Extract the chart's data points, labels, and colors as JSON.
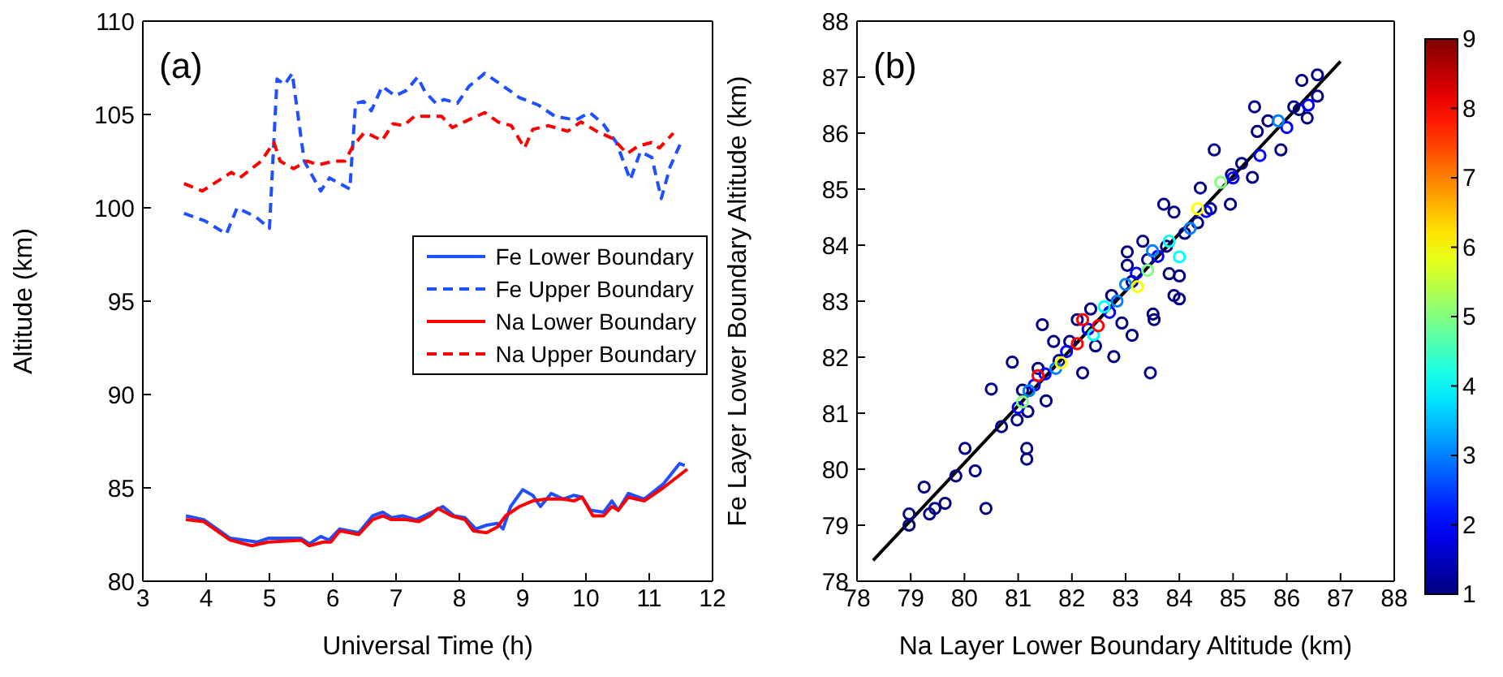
{
  "chart_data": [
    {
      "type": "line",
      "annotations": [
        "(a)"
      ],
      "xlabel": "Universal Time (h)",
      "ylabel": "Altitude (km)",
      "xlim": [
        3,
        12
      ],
      "xticks": [
        3,
        4,
        5,
        6,
        7,
        8,
        9,
        10,
        11,
        12
      ],
      "ylim": [
        80,
        110
      ],
      "yticks": [
        80,
        85,
        90,
        95,
        100,
        105,
        110
      ],
      "legend": "right",
      "marker": "none",
      "series": [
        {
          "name": "Fe Lower Boundary",
          "color": "#1f4fff",
          "line_style": "solid",
          "x": [
            3.68,
            3.96,
            4.38,
            4.81,
            4.98,
            5.5,
            5.63,
            5.81,
            5.94,
            6.11,
            6.41,
            6.63,
            6.79,
            6.93,
            7.1,
            7.32,
            7.57,
            7.74,
            7.92,
            8.09,
            8.26,
            8.43,
            8.6,
            8.69,
            8.81,
            9.0,
            9.16,
            9.28,
            9.45,
            9.64,
            9.81,
            9.94,
            10.07,
            10.28,
            10.41,
            10.51,
            10.67,
            10.92,
            11.22,
            11.48,
            11.56
          ],
          "values": [
            83.5,
            83.3,
            82.3,
            82.1,
            82.3,
            82.3,
            82.0,
            82.4,
            82.2,
            82.8,
            82.6,
            83.5,
            83.7,
            83.4,
            83.5,
            83.3,
            83.7,
            84.0,
            83.5,
            83.4,
            82.8,
            83.0,
            83.1,
            82.8,
            84.0,
            84.9,
            84.6,
            84.0,
            84.7,
            84.4,
            84.6,
            84.5,
            83.8,
            83.7,
            84.3,
            83.8,
            84.7,
            84.4,
            85.2,
            86.3,
            86.2
          ]
        },
        {
          "name": "Fe Upper Boundary",
          "color": "#1f4fff",
          "line_style": "dashed",
          "x": [
            3.65,
            3.98,
            4.32,
            4.49,
            4.79,
            5.0,
            5.12,
            5.24,
            5.36,
            5.55,
            5.81,
            5.95,
            6.27,
            6.36,
            6.49,
            6.61,
            6.78,
            6.99,
            7.17,
            7.34,
            7.46,
            7.63,
            7.76,
            7.97,
            8.15,
            8.4,
            8.66,
            8.95,
            9.25,
            9.51,
            9.84,
            10.06,
            10.27,
            10.48,
            10.7,
            10.86,
            11.04,
            11.19,
            11.33,
            11.5
          ],
          "values": [
            99.7,
            99.3,
            98.6,
            100.0,
            99.5,
            98.9,
            106.9,
            106.6,
            107.2,
            102.5,
            100.9,
            101.6,
            101.0,
            105.6,
            105.7,
            105.2,
            106.5,
            106.0,
            106.3,
            107.0,
            106.2,
            105.6,
            105.8,
            105.6,
            106.5,
            107.2,
            106.6,
            105.9,
            105.5,
            104.9,
            104.7,
            105.1,
            104.5,
            103.5,
            101.5,
            103.0,
            102.7,
            100.5,
            102.2,
            103.5
          ]
        },
        {
          "name": "Na Lower Boundary",
          "color": "#ff0000",
          "line_style": "solid",
          "x": [
            3.68,
            3.96,
            4.38,
            4.72,
            4.98,
            5.5,
            5.63,
            5.85,
            5.97,
            6.11,
            6.41,
            6.63,
            6.79,
            6.93,
            7.15,
            7.36,
            7.53,
            7.66,
            7.88,
            8.09,
            8.22,
            8.43,
            8.6,
            8.73,
            8.95,
            9.16,
            9.38,
            9.64,
            9.81,
            9.94,
            10.11,
            10.28,
            10.41,
            10.51,
            10.67,
            10.92,
            11.22,
            11.6
          ],
          "values": [
            83.3,
            83.2,
            82.2,
            81.9,
            82.1,
            82.2,
            81.9,
            82.1,
            82.1,
            82.7,
            82.5,
            83.3,
            83.5,
            83.3,
            83.3,
            83.2,
            83.5,
            83.9,
            83.5,
            83.3,
            82.7,
            82.6,
            82.9,
            83.5,
            84.0,
            84.3,
            84.4,
            84.4,
            84.3,
            84.5,
            83.5,
            83.5,
            84.0,
            83.8,
            84.5,
            84.3,
            85.0,
            86.0
          ]
        },
        {
          "name": "Na Upper Boundary",
          "color": "#ff0000",
          "line_style": "dashed",
          "x": [
            3.65,
            3.94,
            4.4,
            4.53,
            4.87,
            5.07,
            5.17,
            5.38,
            5.6,
            5.77,
            6.02,
            6.19,
            6.32,
            6.49,
            6.6,
            6.78,
            6.95,
            7.12,
            7.29,
            7.5,
            7.72,
            7.89,
            8.14,
            8.4,
            8.61,
            8.82,
            9.03,
            9.16,
            9.41,
            9.71,
            9.92,
            10.17,
            10.43,
            10.65,
            10.82,
            11.04,
            11.16,
            11.38
          ],
          "values": [
            101.3,
            100.9,
            101.9,
            101.6,
            102.5,
            103.5,
            102.5,
            102.1,
            102.5,
            102.3,
            102.5,
            102.5,
            103.3,
            104.0,
            103.9,
            103.6,
            104.5,
            104.4,
            104.9,
            104.9,
            104.9,
            104.3,
            104.7,
            105.1,
            104.6,
            104.4,
            103.2,
            104.2,
            104.4,
            104.1,
            104.6,
            104.1,
            103.7,
            102.9,
            103.3,
            103.5,
            103.2,
            104.0
          ]
        }
      ]
    },
    {
      "type": "scatter",
      "annotations": [
        "(b)"
      ],
      "xlabel": "Na Layer Lower Boundary Altitude (km)",
      "ylabel": "Fe Layer Lower Boundary Altitude (km)",
      "xlim": [
        78,
        88
      ],
      "xticks": [
        78,
        79,
        80,
        81,
        82,
        83,
        84,
        85,
        86,
        87,
        88
      ],
      "ylim": [
        78,
        88
      ],
      "yticks": [
        78,
        79,
        80,
        81,
        82,
        83,
        84,
        85,
        86,
        87,
        88
      ],
      "clim": [
        1,
        9
      ],
      "cticks": [
        1,
        2,
        3,
        4,
        5,
        6,
        7,
        8,
        9
      ],
      "series": [
        {
          "marker": "circle",
          "x": [
            78.97,
            78.97,
            79.25,
            79.35,
            79.45,
            79.64,
            79.84,
            80.01,
            80.2,
            80.4,
            80.69,
            80.5,
            80.89,
            81.16,
            81.16,
            81.45,
            80.98,
            81.18,
            81.52,
            81.08,
            81.37,
            81.76,
            82.2,
            82.78,
            83.46,
            83.53,
            84.0,
            83.12,
            82.93,
            81.96,
            82.1,
            82.44,
            81.66,
            86.57,
            86.28,
            86.57,
            85.4,
            86.13,
            86.38,
            85.89,
            85.45,
            84.65,
            84.97,
            85.36,
            84.95,
            83.71,
            84.39,
            83.9,
            84.34,
            83.32,
            83.03,
            84.0,
            83.9,
            83.81,
            83.51,
            83.03,
            82.74,
            82.35,
            83.12,
            83.41,
            83.76,
            84.1,
            84.58,
            85.16,
            85.65,
            86.23,
            81.0,
            81.3,
            81.5,
            81.9,
            82.3,
            82.7,
            83.2,
            83.6,
            84.5,
            85.0,
            85.5,
            86.0,
            86.4,
            82.84,
            85.84,
            81.7,
            83.0,
            81.2,
            83.5,
            84.2,
            83.81,
            84.0,
            82.6,
            82.4,
            84.77,
            83.41,
            81.08,
            84.34,
            83.22,
            81.8,
            82.2,
            81.37,
            82.49,
            82.1
          ],
          "values": [
            79.2,
            79.0,
            79.68,
            79.2,
            79.3,
            79.39,
            79.88,
            80.37,
            79.97,
            79.3,
            80.76,
            81.43,
            81.91,
            80.37,
            80.18,
            82.58,
            80.88,
            81.03,
            81.22,
            81.41,
            81.8,
            81.94,
            81.72,
            82.01,
            81.72,
            82.67,
            83.04,
            82.39,
            82.61,
            82.28,
            82.67,
            82.2,
            82.28,
            87.04,
            86.94,
            86.66,
            86.47,
            86.47,
            86.27,
            85.7,
            86.03,
            85.7,
            85.26,
            85.21,
            84.73,
            84.73,
            85.02,
            84.59,
            84.4,
            84.07,
            83.88,
            83.45,
            83.1,
            83.49,
            82.77,
            83.64,
            83.1,
            82.86,
            83.35,
            83.74,
            83.98,
            84.21,
            84.65,
            85.46,
            86.22,
            86.42,
            81.1,
            81.5,
            81.7,
            82.1,
            82.5,
            82.8,
            83.5,
            83.8,
            84.6,
            85.2,
            85.6,
            86.1,
            86.5,
            83.0,
            86.22,
            81.8,
            83.3,
            81.4,
            83.9,
            84.3,
            84.07,
            83.79,
            82.9,
            82.4,
            85.12,
            83.55,
            81.2,
            84.65,
            83.26,
            81.9,
            82.67,
            81.67,
            82.56,
            82.24
          ],
          "colors": [
            "#000080",
            "#000080",
            "#000080",
            "#000080",
            "#000080",
            "#000080",
            "#000080",
            "#000080",
            "#000080",
            "#000080",
            "#000080",
            "#000080",
            "#000080",
            "#000080",
            "#000080",
            "#000080",
            "#000080",
            "#000080",
            "#000080",
            "#000080",
            "#000080",
            "#000080",
            "#000080",
            "#000080",
            "#000080",
            "#000080",
            "#000080",
            "#000080",
            "#000080",
            "#000080",
            "#000080",
            "#000080",
            "#000080",
            "#000080",
            "#000080",
            "#000080",
            "#000080",
            "#000080",
            "#000080",
            "#000080",
            "#000080",
            "#000080",
            "#000080",
            "#000080",
            "#000080",
            "#000080",
            "#000080",
            "#000080",
            "#000080",
            "#000080",
            "#000080",
            "#000080",
            "#000080",
            "#000080",
            "#000080",
            "#000080",
            "#000080",
            "#000080",
            "#000080",
            "#000080",
            "#000080",
            "#000080",
            "#000080",
            "#000080",
            "#000080",
            "#000080",
            "#0000ff",
            "#0000ff",
            "#0000ff",
            "#0000ff",
            "#0000ff",
            "#0000ff",
            "#0000ff",
            "#0000ff",
            "#0000ff",
            "#0000ff",
            "#0000ff",
            "#0000ff",
            "#0000ff",
            "#0080ff",
            "#0080ff",
            "#0080ff",
            "#0080ff",
            "#0080ff",
            "#0080ff",
            "#0080ff",
            "#00ffff",
            "#00ffff",
            "#00ffff",
            "#00ffff",
            "#80ff80",
            "#80ff80",
            "#80ff80",
            "#ffff00",
            "#ffff00",
            "#ffff00",
            "#ff0000",
            "#ff0000",
            "#ff0000",
            "#ff0000"
          ]
        },
        {
          "type": "line",
          "color": "#000000",
          "marker": "none",
          "line_style": "solid",
          "x": [
            78.3,
            87.0
          ],
          "values": [
            78.37,
            87.28
          ]
        }
      ]
    }
  ]
}
